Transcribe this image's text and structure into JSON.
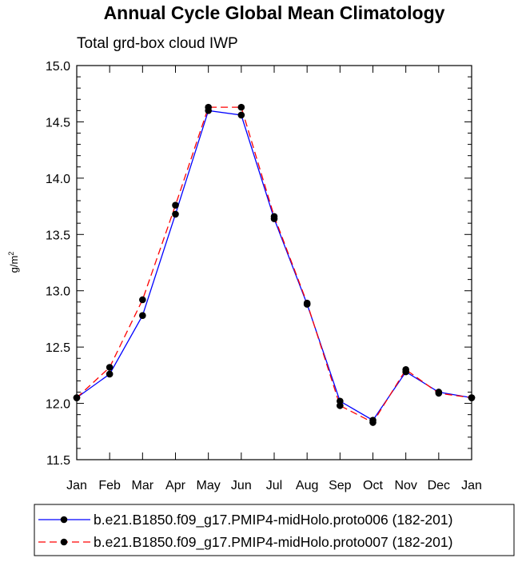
{
  "chart_data": {
    "type": "line",
    "title": "Annual Cycle Global Mean Climatology",
    "subtitle": "Total grd-box cloud IWP",
    "ylabel_base": "g/m",
    "ylabel_sup": "2",
    "categories": [
      "Jan",
      "Feb",
      "Mar",
      "Apr",
      "May",
      "Jun",
      "Jul",
      "Aug",
      "Sep",
      "Oct",
      "Nov",
      "Dec",
      "Jan"
    ],
    "ylim": [
      11.5,
      15.0
    ],
    "yticks": [
      11.5,
      12.0,
      12.5,
      13.0,
      13.5,
      14.0,
      14.5,
      15.0
    ],
    "ytick_labels": [
      "11.5",
      "12.0",
      "12.5",
      "13.0",
      "13.5",
      "14.0",
      "14.5",
      "15.0"
    ],
    "grid": false,
    "legend_position": "bottom",
    "series": [
      {
        "name": "b.e21.B1850.f09_g17.PMIP4-midHolo.proto006 (182-201)",
        "color": "#0000ff",
        "dash": "solid",
        "values": [
          12.05,
          12.26,
          12.78,
          13.68,
          14.6,
          14.56,
          13.64,
          12.88,
          12.02,
          11.85,
          12.28,
          12.1,
          12.05
        ]
      },
      {
        "name": "b.e21.B1850.f09_g17.PMIP4-midHolo.proto007 (182-201)",
        "color": "#ff0000",
        "dash": "dashed",
        "values": [
          12.05,
          12.32,
          12.92,
          13.76,
          14.63,
          14.63,
          13.66,
          12.89,
          11.98,
          11.83,
          12.3,
          12.09,
          12.05
        ]
      }
    ]
  }
}
